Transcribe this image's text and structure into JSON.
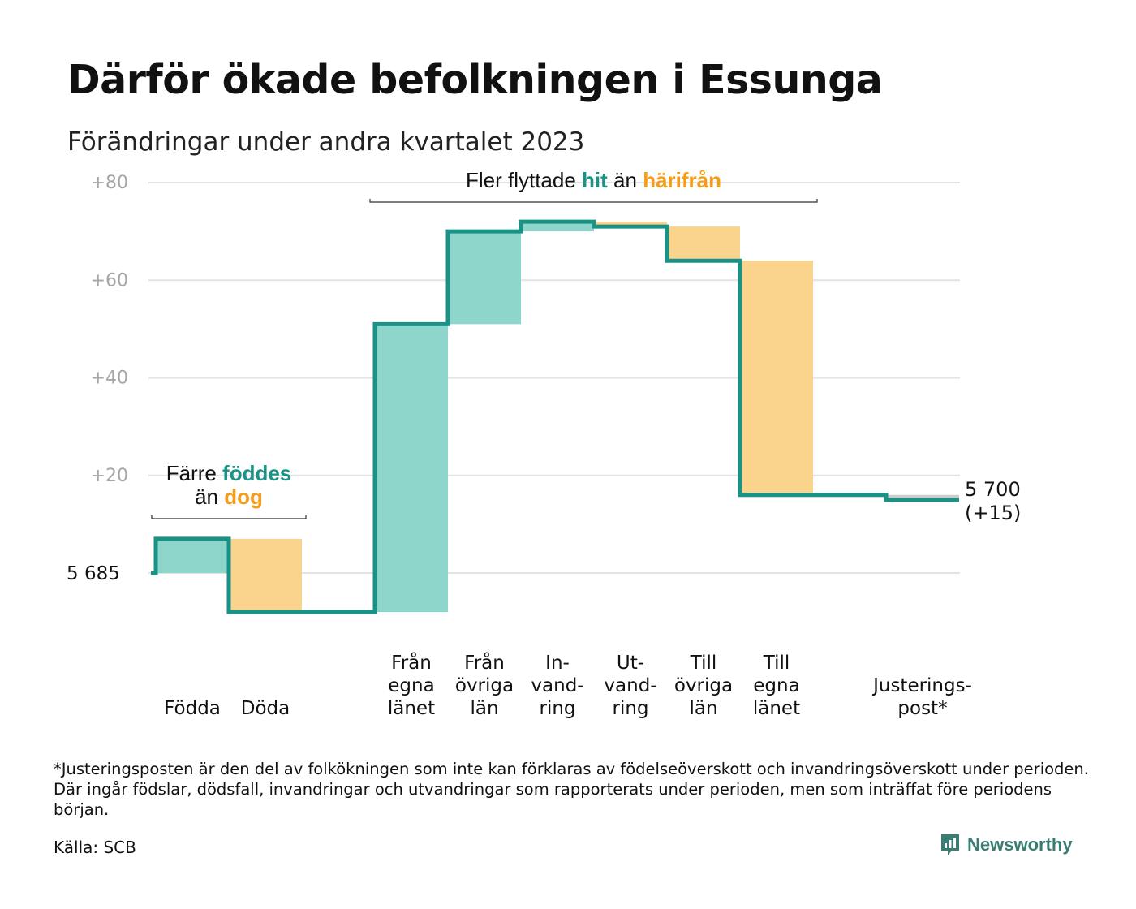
{
  "title": "Därför ökade befolkningen i Essunga",
  "subtitle": "Förändringar under andra kvartalet 2023",
  "footnote": "*Justeringsposten är den del av folkökningen som inte kan förklaras av födelseöverskott och invandringsöverskott under perioden. Där ingår födslar, dödsfall, invandringar och utvandringar som rapporterats under perioden, men som inträffat före periodens början.",
  "source": "Källa: SCB",
  "brand": "Newsworthy",
  "colors": {
    "increase": "#8ed5cc",
    "decrease": "#fad38c",
    "adjustment": "#cccccc",
    "line": "#1a9386",
    "teal_text": "#1a9386",
    "orange_text": "#f59c1a",
    "grid": "#e3e3e3",
    "tick_text": "#a6a6a6"
  },
  "chart_data": {
    "type": "waterfall",
    "start_value": 5685,
    "start_label": "5  685",
    "end_label_value": "5 700",
    "end_label_change": "(+15)",
    "ylim": [
      -8,
      80
    ],
    "yticks": [
      {
        "value": 80,
        "label": "+80"
      },
      {
        "value": 60,
        "label": "+60"
      },
      {
        "value": 40,
        "label": "+40"
      },
      {
        "value": 20,
        "label": "+20"
      },
      {
        "value": 0,
        "label": ""
      }
    ],
    "categories": [
      {
        "lines": [
          "Födda"
        ],
        "change": 7,
        "kind": "increase"
      },
      {
        "lines": [
          "Döda"
        ],
        "change": -15,
        "kind": "decrease"
      },
      {
        "lines": [
          ""
        ],
        "change": 0,
        "kind": "none"
      },
      {
        "lines": [
          "Från",
          "egna",
          "länet"
        ],
        "change": 59,
        "kind": "increase"
      },
      {
        "lines": [
          "Från",
          "övriga",
          "län"
        ],
        "change": 19,
        "kind": "increase"
      },
      {
        "lines": [
          "In-",
          "vand-",
          "ring"
        ],
        "change": 2,
        "kind": "increase"
      },
      {
        "lines": [
          "Ut-",
          "vand-",
          "ring"
        ],
        "change": -1,
        "kind": "decrease"
      },
      {
        "lines": [
          "Till",
          "övriga",
          "län"
        ],
        "change": -7,
        "kind": "decrease"
      },
      {
        "lines": [
          "Till",
          "egna",
          "länet"
        ],
        "change": -48,
        "kind": "decrease"
      },
      {
        "lines": [
          ""
        ],
        "change": 0,
        "kind": "none"
      },
      {
        "lines": [
          "Justerings-",
          "post*"
        ],
        "change": -1,
        "kind": "adjustment"
      }
    ],
    "annotations": [
      {
        "parts": [
          {
            "text": "Färre ",
            "style": "plain"
          },
          {
            "text": "föddes",
            "style": "teal"
          },
          {
            "text": "än ",
            "style": "plain",
            "newline": true
          },
          {
            "text": "dog",
            "style": "orange"
          }
        ],
        "from_index": 0,
        "to_index": 1
      },
      {
        "parts": [
          {
            "text": "Fler flyttade ",
            "style": "plain"
          },
          {
            "text": "hit",
            "style": "teal"
          },
          {
            "text": "  än ",
            "style": "plain"
          },
          {
            "text": "härifrån",
            "style": "orange"
          }
        ],
        "from_index": 3,
        "to_index": 8
      }
    ]
  }
}
